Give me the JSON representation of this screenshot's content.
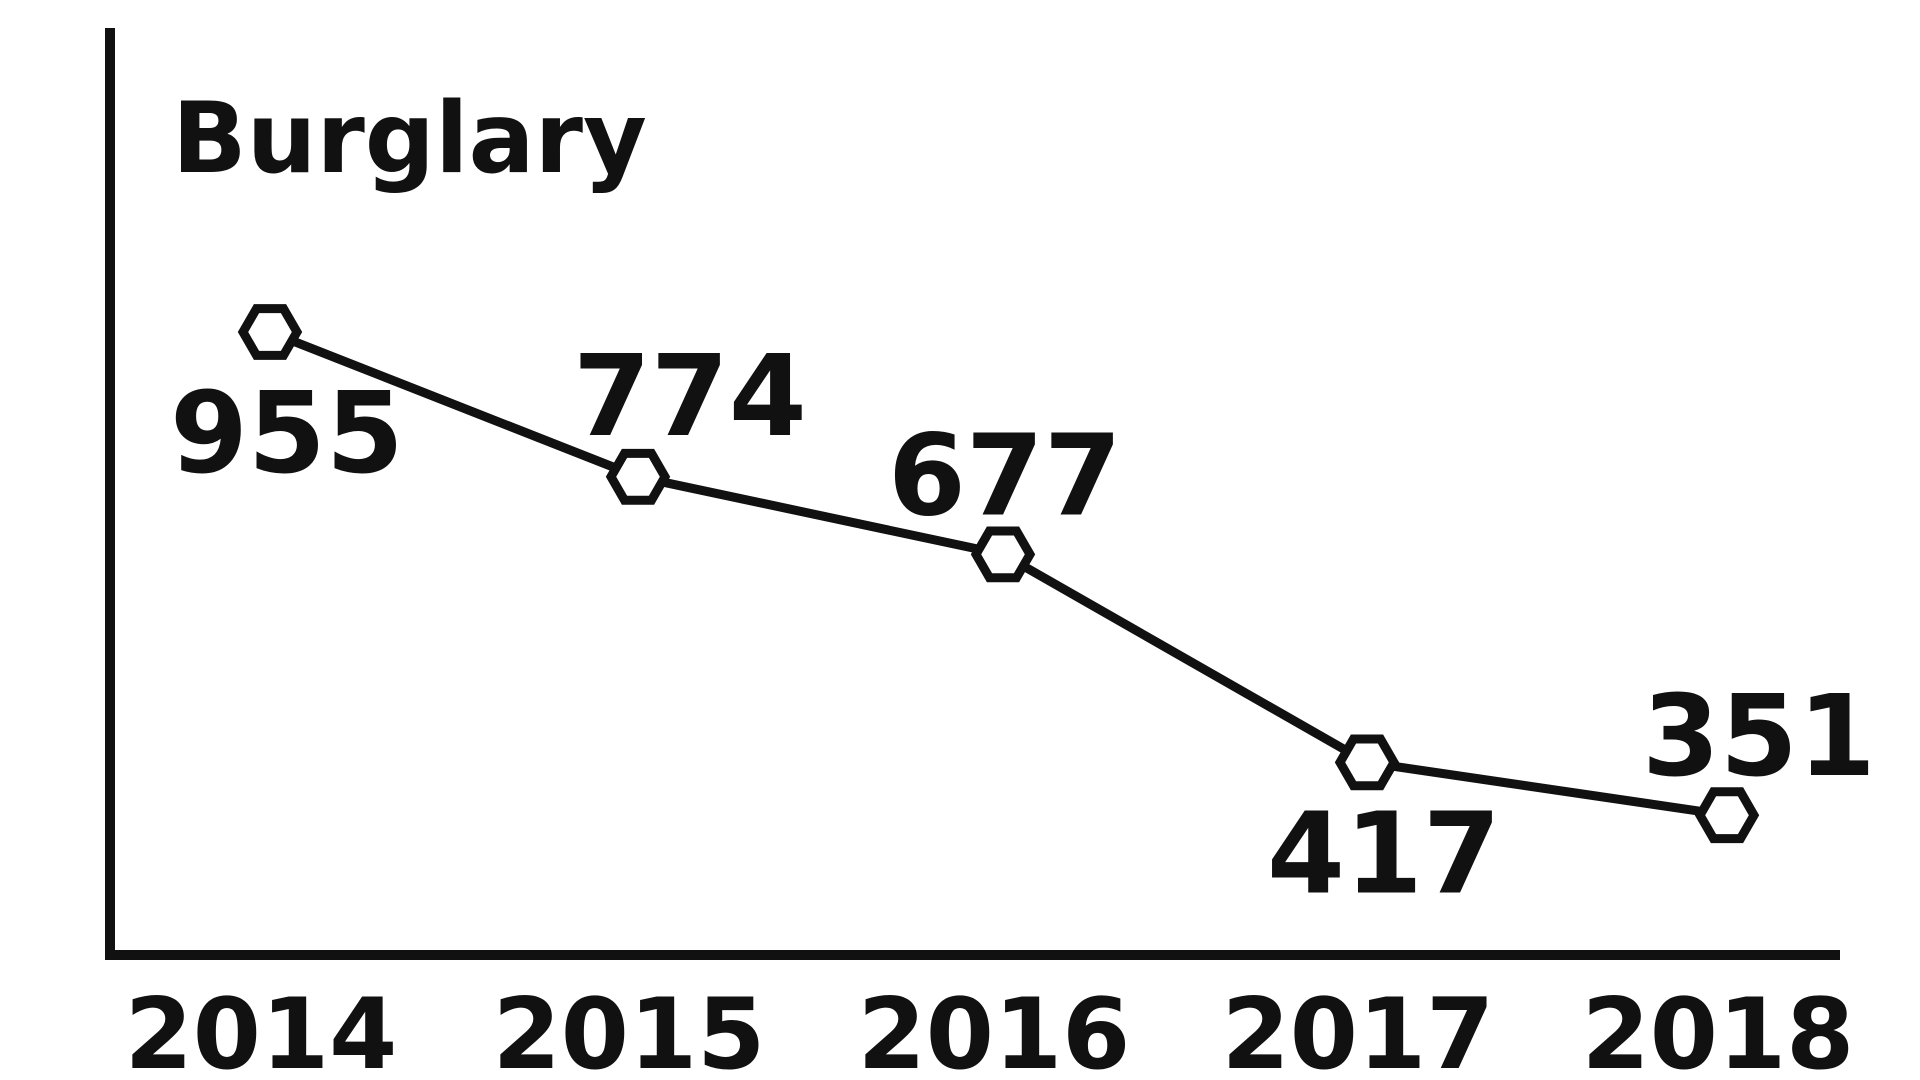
{
  "chart_data": {
    "type": "line",
    "title": "Burglary",
    "xlabel": "",
    "ylabel": "",
    "categories": [
      "2014",
      "2015",
      "2016",
      "2017",
      "2018"
    ],
    "series": [
      {
        "values": [
          955,
          774,
          677,
          417,
          351
        ],
        "labels": [
          "955",
          "774",
          "677",
          "417",
          "351"
        ]
      }
    ],
    "ylim": [
      0,
      1200
    ],
    "grid": false,
    "legend": "none",
    "marker": "hexagon",
    "colors": {
      "line": "#111111",
      "marker_fill": "#ffffff",
      "text": "#111111",
      "background": "#ffffff"
    }
  }
}
